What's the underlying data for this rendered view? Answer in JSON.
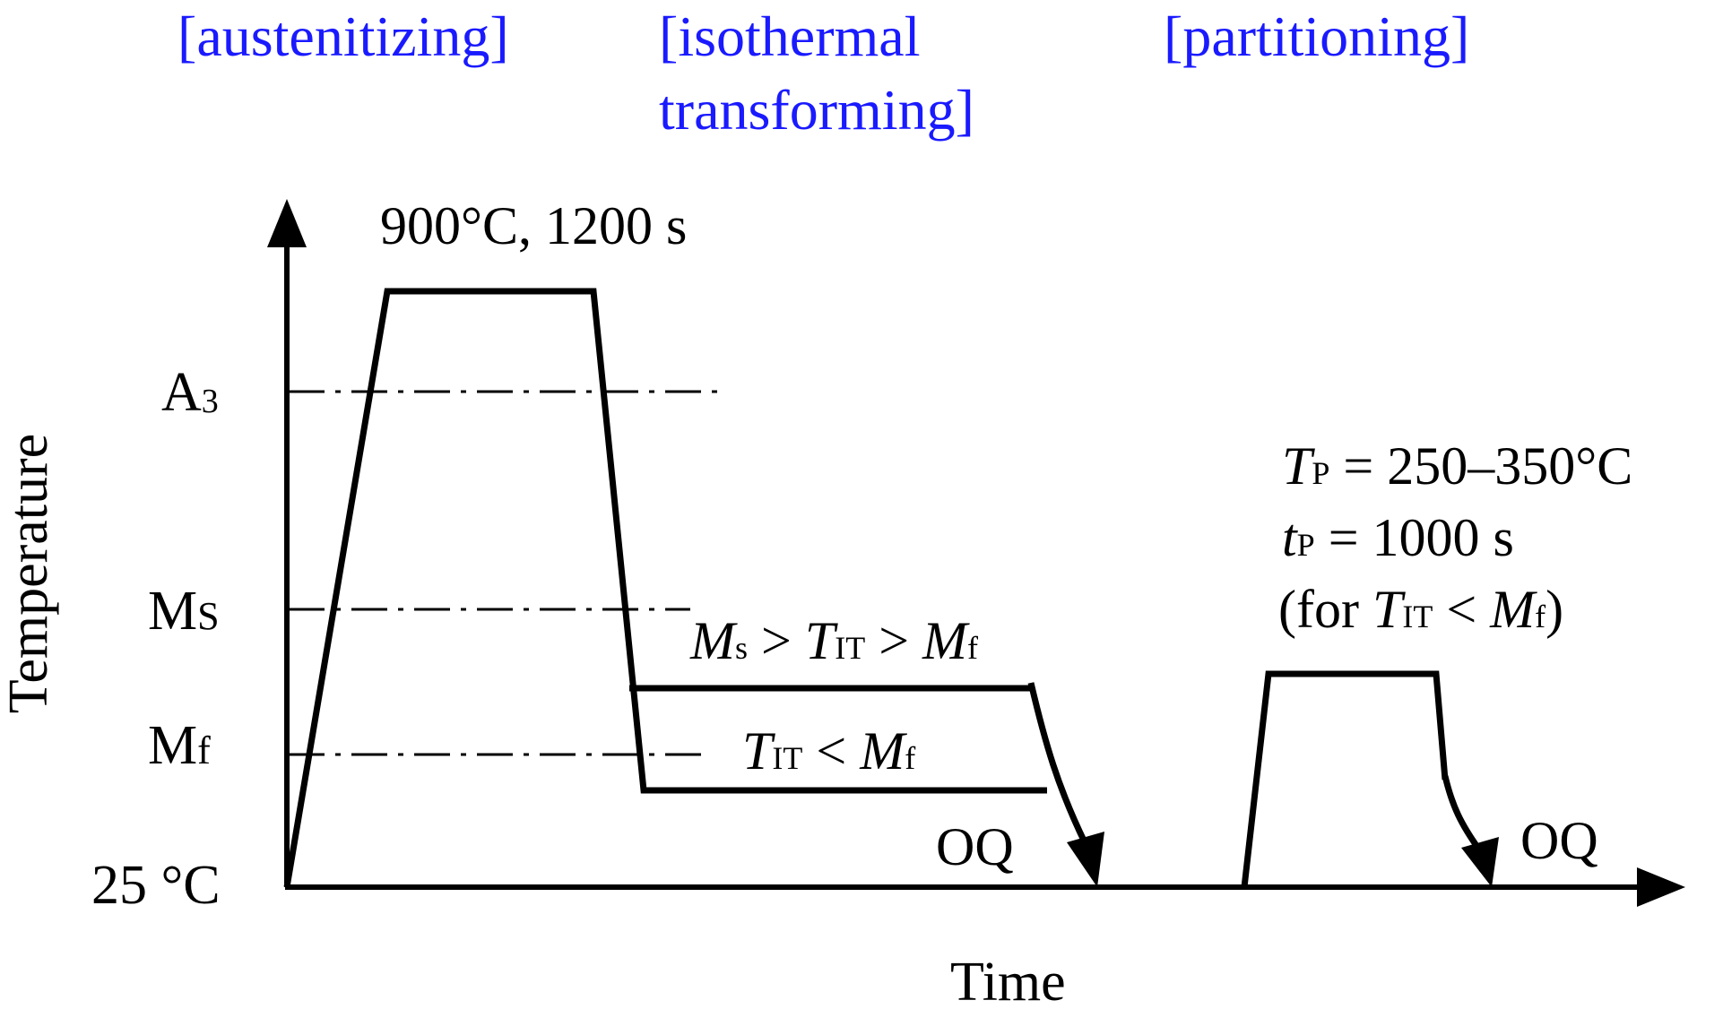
{
  "stages": {
    "austenitizing": "[austenitizing]",
    "isothermal_line1": "[isothermal",
    "isothermal_line2": "transforming]",
    "partitioning": "[partitioning]"
  },
  "axes": {
    "y_label": "Temperature",
    "x_label": "Time",
    "origin_label": "25 °C"
  },
  "levels": {
    "a3": {
      "main": "A",
      "sub": "3"
    },
    "ms": {
      "main": "M",
      "sub": "S"
    },
    "mf": {
      "main": "M",
      "sub": "f"
    }
  },
  "annotations": {
    "austenitize": "900°C, 1200 s",
    "cond1": {
      "ms": "M",
      "ms_sub": "s",
      "gt1": " > ",
      "t": "T",
      "t_sub": "IT",
      "gt2": " > ",
      "mf": "M",
      "mf_sub": "f"
    },
    "cond2": {
      "t": "T",
      "t_sub": "IT",
      "lt": " < ",
      "mf": "M",
      "mf_sub": "f"
    },
    "oq1": "OQ",
    "oq2": "OQ",
    "tp": {
      "t": "T",
      "sub": "P",
      "rest": " = 250–350°C"
    },
    "tp_time": {
      "t": "t",
      "sub": "P",
      "rest": " = 1000 s"
    },
    "tp_cond": {
      "open": "(for ",
      "t": "T",
      "t_sub": "IT",
      "lt": " < ",
      "mf": "M",
      "mf_sub": "f",
      "close": ")"
    }
  },
  "colors": {
    "stage_label": "#1a1aff",
    "ink": "#000000"
  }
}
